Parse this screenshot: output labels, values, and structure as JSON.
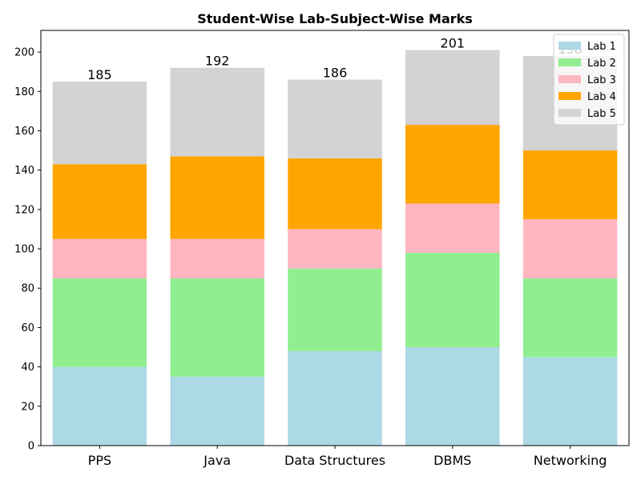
{
  "chart_data": {
    "type": "bar",
    "stacked": true,
    "title": "Student-Wise Lab-Subject-Wise Marks",
    "xlabel": "",
    "ylabel": "",
    "categories": [
      "PPS",
      "Java",
      "Data Structures",
      "DBMS",
      "Networking"
    ],
    "series": [
      {
        "name": "Lab 1",
        "color": "#add8e6",
        "values": [
          40,
          35,
          48,
          50,
          45
        ]
      },
      {
        "name": "Lab 2",
        "color": "#90ee90",
        "values": [
          45,
          50,
          42,
          48,
          40
        ]
      },
      {
        "name": "Lab 3",
        "color": "#ffb6c1",
        "values": [
          20,
          20,
          20,
          25,
          30
        ]
      },
      {
        "name": "Lab 4",
        "color": "#ffa500",
        "values": [
          38,
          42,
          36,
          40,
          35
        ]
      },
      {
        "name": "Lab 5",
        "color": "#d3d3d3",
        "values": [
          42,
          45,
          40,
          38,
          48
        ]
      }
    ],
    "totals": [
      "185",
      "192",
      "186",
      "201",
      "198"
    ],
    "ylim": [
      0,
      211
    ],
    "yticks": [
      "0",
      "20",
      "40",
      "60",
      "80",
      "100",
      "120",
      "140",
      "160",
      "180",
      "200"
    ],
    "grid": false,
    "legend_position": "top-right"
  }
}
